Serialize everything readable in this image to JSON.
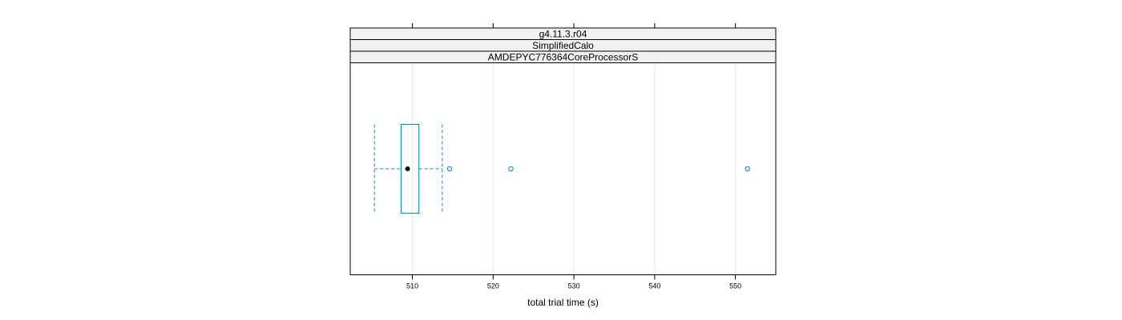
{
  "chart_data": {
    "type": "boxplot",
    "orientation": "horizontal",
    "strips": [
      "g4.11.3.r04",
      "SimplifiedCalo",
      "AMDEPYC776364CoreProcessorS"
    ],
    "xlabel": "total trial time (s)",
    "xlim": [
      502.3,
      555.0
    ],
    "ticks": [
      510,
      520,
      530,
      540,
      550
    ],
    "tick_labels": [
      "510",
      "520",
      "530",
      "540",
      "550"
    ],
    "grid": true,
    "box": {
      "whisker_low": 505.3,
      "q1": 508.6,
      "median": 509.4,
      "q3": 510.8,
      "whisker_high": 513.7
    },
    "outliers": [
      514.6,
      522.2,
      551.5
    ],
    "colors": {
      "box": "#0080ff",
      "strip_background": "#f2f2f2",
      "grid": "#e6e6e6",
      "median_dot": "#000000",
      "frame": "#000000"
    }
  }
}
